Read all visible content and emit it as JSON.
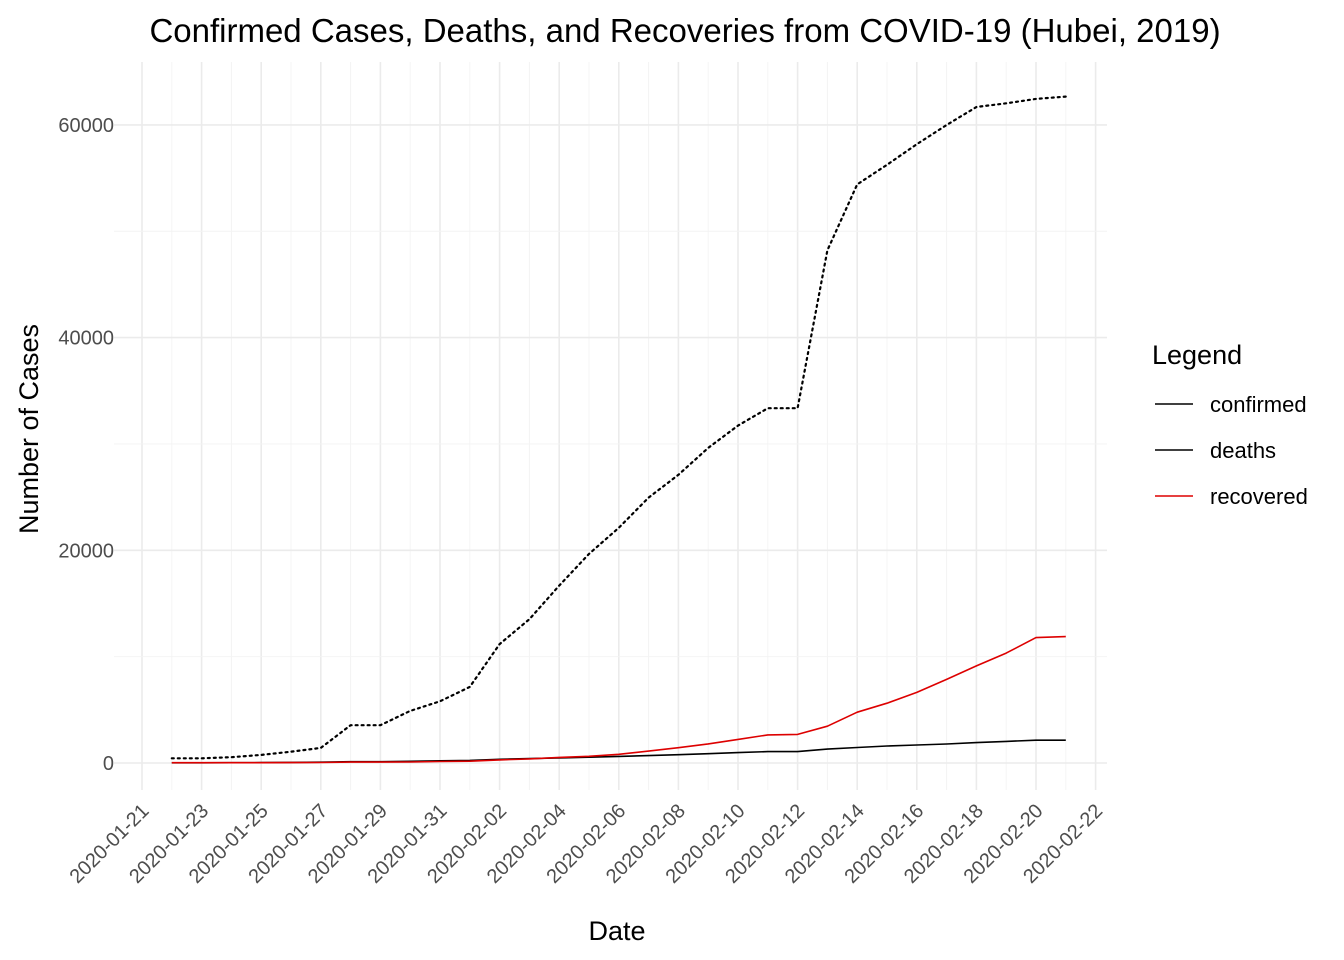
{
  "chart_data": {
    "type": "line",
    "title": "Confirmed Cases, Deaths, and Recoveries from COVID-19 (Hubei, 2019)",
    "xlabel": "Date",
    "ylabel": "Number of Cases",
    "legend_title": "Legend",
    "legend_position": "right",
    "grid": true,
    "x_tick_labels": [
      "2020-01-21",
      "2020-01-23",
      "2020-01-25",
      "2020-01-27",
      "2020-01-29",
      "2020-01-31",
      "2020-02-02",
      "2020-02-04",
      "2020-02-06",
      "2020-02-08",
      "2020-02-10",
      "2020-02-12",
      "2020-02-14",
      "2020-02-16",
      "2020-02-18",
      "2020-02-20",
      "2020-02-22"
    ],
    "y_ticks": [
      0,
      20000,
      40000,
      60000
    ],
    "xlim": [
      "2020-01-21",
      "2020-02-22"
    ],
    "ylim": [
      0,
      62662
    ],
    "x": [
      "2020-01-22",
      "2020-01-23",
      "2020-01-24",
      "2020-01-25",
      "2020-01-26",
      "2020-01-27",
      "2020-01-28",
      "2020-01-29",
      "2020-01-30",
      "2020-01-31",
      "2020-02-01",
      "2020-02-02",
      "2020-02-03",
      "2020-02-04",
      "2020-02-05",
      "2020-02-06",
      "2020-02-07",
      "2020-02-08",
      "2020-02-09",
      "2020-02-10",
      "2020-02-11",
      "2020-02-12",
      "2020-02-13",
      "2020-02-14",
      "2020-02-15",
      "2020-02-16",
      "2020-02-17",
      "2020-02-18",
      "2020-02-19",
      "2020-02-20",
      "2020-02-21"
    ],
    "series": [
      {
        "name": "confirmed",
        "color": "#000000",
        "linestyle": "dotted",
        "values": [
          444,
          444,
          549,
          761,
          1058,
          1423,
          3554,
          3554,
          4903,
          5806,
          7153,
          11177,
          13522,
          16678,
          19665,
          22112,
          24953,
          27100,
          29631,
          31728,
          33366,
          33366,
          48206,
          54406,
          56249,
          58182,
          59989,
          61682,
          62031,
          62442,
          62662
        ]
      },
      {
        "name": "deaths",
        "color": "#000000",
        "linestyle": "solid",
        "values": [
          17,
          17,
          24,
          40,
          52,
          76,
          125,
          125,
          162,
          204,
          249,
          350,
          414,
          479,
          549,
          618,
          699,
          780,
          871,
          974,
          1068,
          1068,
          1310,
          1457,
          1596,
          1696,
          1789,
          1921,
          2029,
          2144,
          2144
        ]
      },
      {
        "name": "recovered",
        "color": "#dd0000",
        "linestyle": "solid",
        "values": [
          28,
          28,
          31,
          32,
          42,
          45,
          80,
          88,
          90,
          141,
          168,
          295,
          386,
          522,
          633,
          817,
          1115,
          1439,
          1795,
          2222,
          2639,
          2686,
          3459,
          4774,
          5623,
          6639,
          7862,
          9128,
          10337,
          11788,
          11881
        ]
      }
    ]
  }
}
